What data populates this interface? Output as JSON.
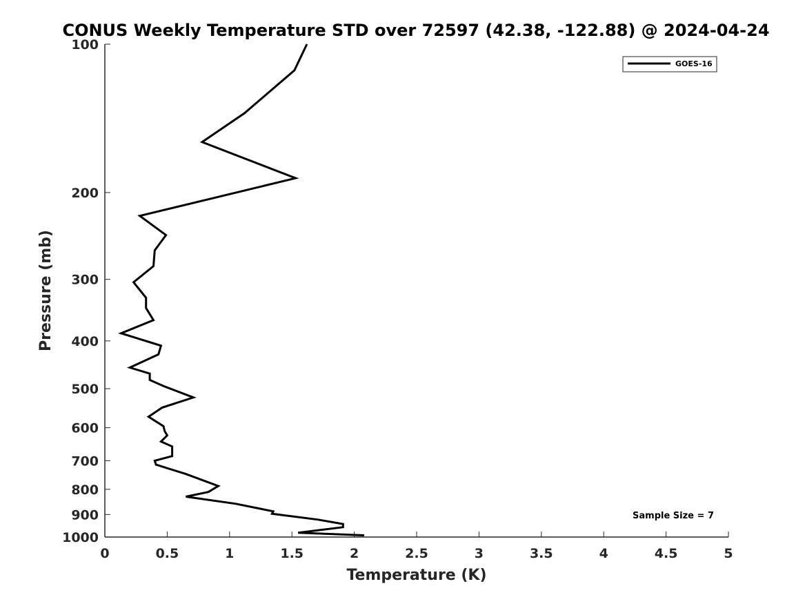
{
  "chart_data": {
    "type": "line",
    "title": "CONUS Weekly Temperature STD over 72597 (42.38, -122.88) @ 2024-04-24",
    "xlabel": "Temperature (K)",
    "ylabel": "Pressure (mb)",
    "xlim": [
      0,
      5
    ],
    "ylim": [
      100,
      1000
    ],
    "y_scale": "log",
    "y_reversed": true,
    "grid": false,
    "legend_position": "top-right",
    "x_ticks": [
      0,
      0.5,
      1,
      1.5,
      2,
      2.5,
      3,
      3.5,
      4,
      4.5,
      5
    ],
    "x_tick_labels": [
      "0",
      "0.5",
      "1",
      "1.5",
      "2",
      "2.5",
      "3",
      "3.5",
      "4",
      "4.5",
      "5"
    ],
    "y_ticks": [
      100,
      200,
      300,
      400,
      500,
      600,
      700,
      800,
      900,
      1000
    ],
    "y_tick_labels": [
      "100",
      "200",
      "300",
      "400",
      "500",
      "600",
      "700",
      "800",
      "900",
      "1000"
    ],
    "series": [
      {
        "name": "GOES-16",
        "color": "#000000",
        "x": [
          1.62,
          1.52,
          1.12,
          0.78,
          1.53,
          0.28,
          0.49,
          0.4,
          0.39,
          0.23,
          0.33,
          0.33,
          0.39,
          0.13,
          0.45,
          0.43,
          0.2,
          0.36,
          0.36,
          0.47,
          0.71,
          0.46,
          0.35,
          0.47,
          0.48,
          0.5,
          0.45,
          0.54,
          0.54,
          0.4,
          0.41,
          0.65,
          0.91,
          0.83,
          0.65,
          1.05,
          1.35,
          1.34,
          1.71,
          1.91,
          1.91,
          1.55,
          2.08
        ],
        "y": [
          100,
          113,
          138,
          158,
          187,
          223,
          244,
          262,
          282,
          304,
          327,
          343,
          363,
          386,
          409,
          426,
          453,
          466,
          480,
          494,
          521,
          546,
          570,
          596,
          610,
          622,
          640,
          655,
          685,
          700,
          713,
          745,
          788,
          810,
          828,
          856,
          887,
          897,
          922,
          941,
          955,
          980,
          992
        ]
      }
    ],
    "annotations": [
      "Sample Size = 7"
    ]
  }
}
